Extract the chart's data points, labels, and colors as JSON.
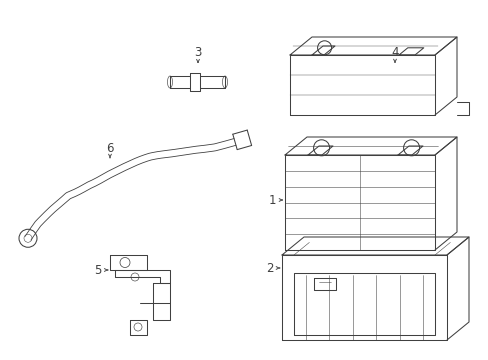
{
  "bg_color": "#ffffff",
  "line_color": "#404040",
  "lw": 0.75,
  "fig_w": 4.89,
  "fig_h": 3.6,
  "dpi": 100
}
